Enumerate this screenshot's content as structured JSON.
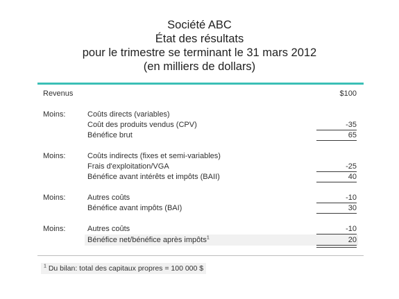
{
  "title": {
    "company": "Société ABC",
    "statement": "État des résultats",
    "period": "pour le trimestre se terminant le 31 mars 2012",
    "units": "(en milliers de dollars)"
  },
  "rows": {
    "revenue": {
      "label": "Revenus",
      "amount": "$100"
    },
    "direct": {
      "prefix": "Moins:",
      "heading": "Coûts directs (variables)",
      "item": "Coût des produits vendus (CPV)",
      "item_amount": "-35",
      "subtotal": "Bénéfice brut",
      "subtotal_amount": "65"
    },
    "indirect": {
      "prefix": "Moins:",
      "heading": "Coûts indirects (fixes et semi-variables)",
      "item": "Frais d'exploitation/VGA",
      "item_amount": "-25",
      "subtotal": "Bénéfice avant intérêts et impôts (BAII)",
      "subtotal_amount": "40"
    },
    "other1": {
      "prefix": "Moins:",
      "item": "Autres coûts",
      "item_amount": "-10",
      "subtotal": "Bénéfice avant impôts (BAI)",
      "subtotal_amount": "30"
    },
    "other2": {
      "prefix": "Moins:",
      "item": "Autres coûts",
      "item_amount": "-10",
      "subtotal": "Bénéfice net/bénéfice après impôts",
      "subtotal_sup": "1",
      "subtotal_amount": "20"
    }
  },
  "footnote": {
    "marker": "1",
    "text": " Du bilan: total des capitaux propres = 100 000 $"
  }
}
